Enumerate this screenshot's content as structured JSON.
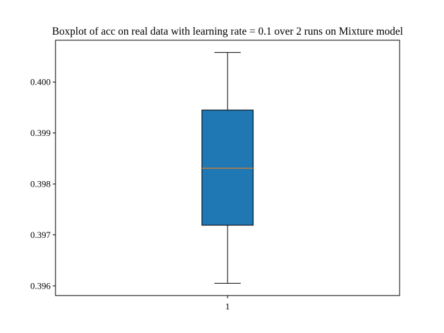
{
  "chart_data": {
    "type": "box",
    "title": "Boxplot of acc on real data with learning rate = 0.1 over 2 runs on Mixture model",
    "xlabel": "",
    "ylabel": "",
    "categories": [
      "1"
    ],
    "boxes": [
      {
        "category": "1",
        "whisker_low": 0.39605,
        "q1": 0.39719,
        "median": 0.39831,
        "q3": 0.39945,
        "whisker_high": 0.40058
      }
    ],
    "ylim": [
      0.39581,
      0.40082
    ],
    "yticks": [
      0.396,
      0.397,
      0.398,
      0.399,
      0.4
    ],
    "ytick_labels": [
      "0.396",
      "0.397",
      "0.398",
      "0.399",
      "0.400"
    ],
    "grid": false,
    "legend": "none",
    "colors": {
      "box_fill": "#1f77b4",
      "median": "#ff7f0e",
      "line": "#000000"
    }
  }
}
